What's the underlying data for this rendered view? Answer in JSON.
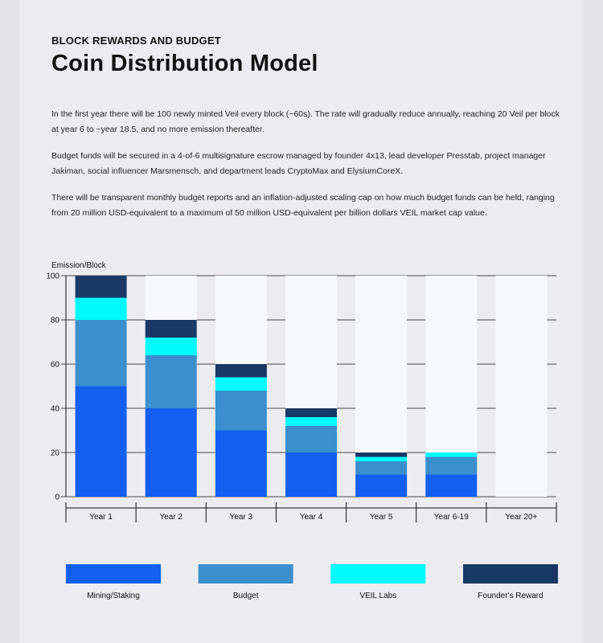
{
  "header": {
    "eyebrow": "BLOCK REWARDS AND BUDGET",
    "title": "Coin Distribution Model"
  },
  "paragraphs": [
    "In the first year there will be 100 newly minted Veil every block (~60s). The rate will gradually reduce annually, reaching 20 Veil per block at year 6 to ~year 18.5, and no more emission thereafter.",
    "Budget funds will be secured in a 4-of-6 multisignature escrow managed by founder 4x13, lead developer Presstab, project manager Jakiman, social influencer Marsmensch, and department leads CryptoMax and ElysiumCoreX.",
    "There will be transparent monthly budget reports and an inflation-adjusted scaling cap on how much budget funds can be held, ranging from 20 million USD-equivalent to a maximum of 50 million USD-equivalent per billion dollars VEIL market cap value."
  ],
  "chart_data": {
    "type": "bar",
    "stacked": true,
    "ylabel": "Emission/Block",
    "ylim": [
      0,
      100
    ],
    "yticks": [
      0,
      20,
      40,
      60,
      80,
      100
    ],
    "categories": [
      "Year 1",
      "Year 2",
      "Year 3",
      "Year 4",
      "Year 5",
      "Year 6-19",
      "Year 20+"
    ],
    "series": [
      {
        "name": "Mining/Staking",
        "color": "#135ff0",
        "values": [
          50,
          40,
          30,
          20,
          10,
          10,
          0
        ]
      },
      {
        "name": "Budget",
        "color": "#3a8fcc",
        "values": [
          30,
          24,
          18,
          12,
          6,
          8,
          0
        ]
      },
      {
        "name": "VEIL Labs",
        "color": "#00fbff",
        "values": [
          10,
          8,
          6,
          4,
          2,
          2,
          0
        ]
      },
      {
        "name": "Founder's Reward",
        "color": "#1a3866",
        "values": [
          10,
          8,
          6,
          4,
          2,
          0,
          0
        ]
      }
    ],
    "background_bar_color": "#f6f8fc"
  }
}
